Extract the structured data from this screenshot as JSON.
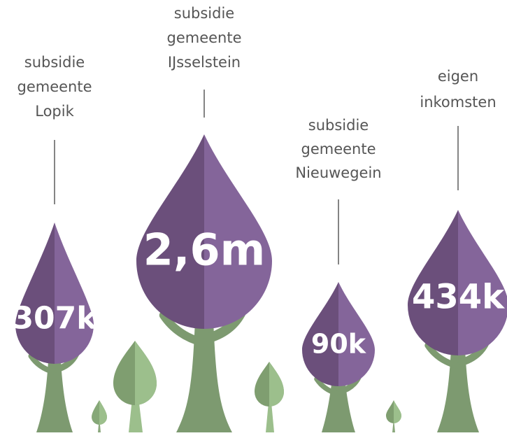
{
  "trees": [
    {
      "label": [
        "subsidie",
        "gemeente",
        "Lopik"
      ],
      "value": "307k"
    },
    {
      "label": [
        "subsidie",
        "gemeente",
        "IJsselstein"
      ],
      "value": "2,6m"
    },
    {
      "label": [
        "subsidie",
        "gemeente",
        "Nieuwegein"
      ],
      "value": "90k"
    },
    {
      "label": [
        "eigen",
        "inkomsten"
      ],
      "value": "434k"
    }
  ]
}
